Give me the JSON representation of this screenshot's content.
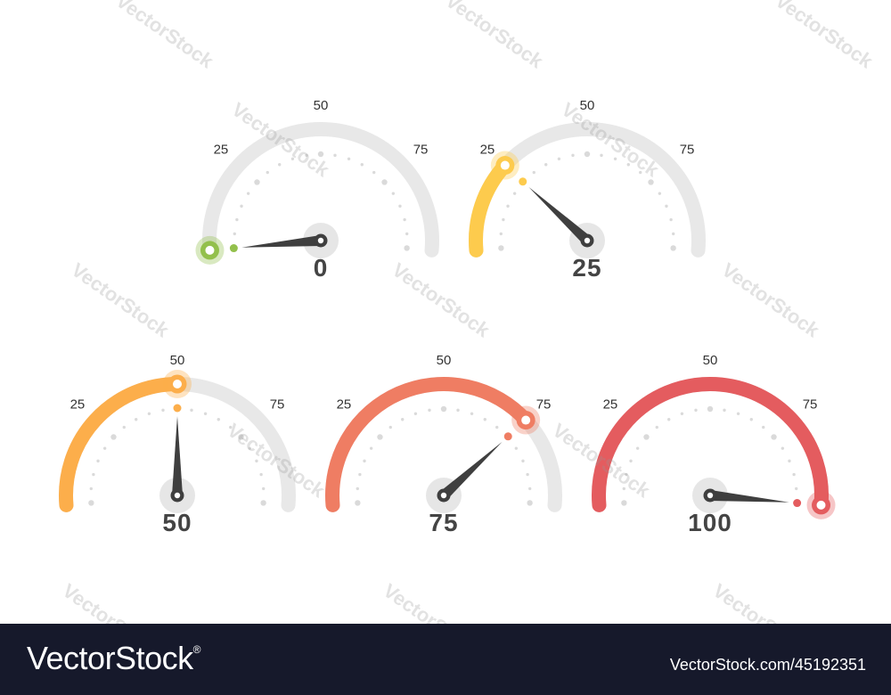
{
  "gauges": [
    {
      "value": 0,
      "value_label": "0",
      "color": "#93c04c",
      "ticks": [
        "25",
        "50",
        "75"
      ]
    },
    {
      "value": 25,
      "value_label": "25",
      "color": "#fdcb4d",
      "ticks": [
        "25",
        "50",
        "75"
      ]
    },
    {
      "value": 50,
      "value_label": "50",
      "color": "#fcae4b",
      "ticks": [
        "25",
        "50",
        "75"
      ]
    },
    {
      "value": 75,
      "value_label": "75",
      "color": "#ef7d63",
      "ticks": [
        "25",
        "50",
        "75"
      ]
    },
    {
      "value": 100,
      "value_label": "100",
      "color": "#e45c5f",
      "ticks": [
        "25",
        "50",
        "75"
      ]
    }
  ],
  "colors": {
    "track": "#e8e8e8",
    "needle": "#3f3f3f",
    "hub": "#e6e6e6",
    "dots": "#dadada",
    "footer_bg": "#16192b"
  },
  "watermark": {
    "text": "VectorStock"
  },
  "footer": {
    "brand": "VectorStock",
    "registered": "®",
    "ref": "VectorStock.com/45192351"
  }
}
